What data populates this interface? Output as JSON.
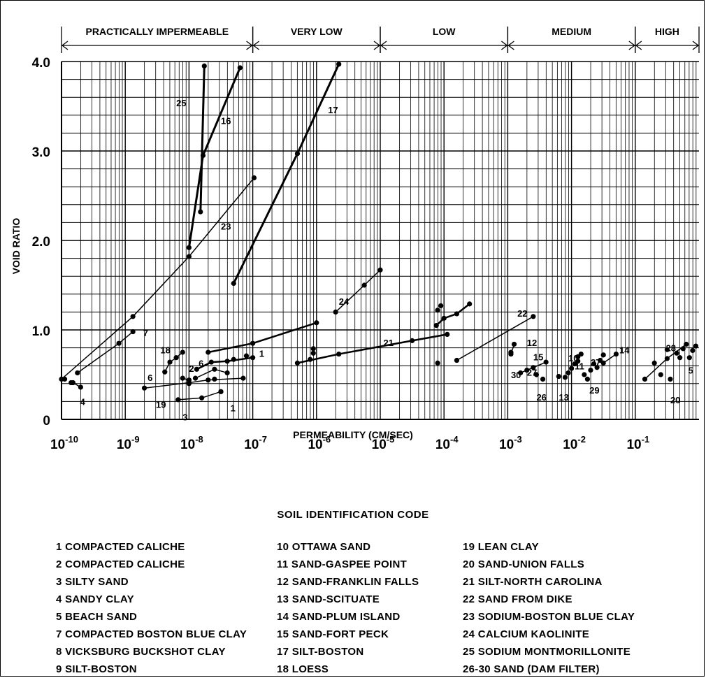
{
  "chart_data": {
    "type": "scatter",
    "xlabel": "PERMEABILITY (CM/SEC)",
    "ylabel": "VOID RATIO",
    "x_scale": "log",
    "xlim": [
      1e-10,
      1
    ],
    "ylim": [
      0,
      4.0
    ],
    "grid": true,
    "x_ticks": [
      {
        "value": -10,
        "label": "10",
        "exp": "-10"
      },
      {
        "value": -9,
        "label": "10",
        "exp": "-9"
      },
      {
        "value": -8,
        "label": "10",
        "exp": "-8"
      },
      {
        "value": -7,
        "label": "10",
        "exp": "-7"
      },
      {
        "value": -6,
        "label": "10",
        "exp": "-6"
      },
      {
        "value": -5,
        "label": "10",
        "exp": "-5"
      },
      {
        "value": -4,
        "label": "10",
        "exp": "-4"
      },
      {
        "value": -3,
        "label": "10",
        "exp": "-3"
      },
      {
        "value": -2,
        "label": "10",
        "exp": "-2"
      },
      {
        "value": -1,
        "label": "10",
        "exp": "-1"
      }
    ],
    "y_ticks": [
      {
        "value": 0,
        "label": "0"
      },
      {
        "value": 1.0,
        "label": "1.0"
      },
      {
        "value": 2.0,
        "label": "2.0"
      },
      {
        "value": 3.0,
        "label": "3.0"
      },
      {
        "value": 4.0,
        "label": "4.0"
      }
    ],
    "ranges": [
      {
        "label": "PRACTICALLY IMPERMEABLE",
        "from": -10,
        "to": -7
      },
      {
        "label": "VERY LOW",
        "from": -7,
        "to": -5
      },
      {
        "label": "LOW",
        "from": -5,
        "to": -3
      },
      {
        "label": "MEDIUM",
        "from": -3,
        "to": -1
      },
      {
        "label": "HIGH",
        "from": -1,
        "to": 0
      }
    ],
    "series": [
      {
        "name": "25",
        "width": 3,
        "label_at": [
          -8.2,
          3.5
        ],
        "points": [
          [
            -7.76,
            3.95
          ],
          [
            -7.82,
            2.32
          ]
        ]
      },
      {
        "name": "16",
        "width": 3,
        "label_at": [
          -7.5,
          3.3
        ],
        "points": [
          [
            -8.0,
            1.92
          ],
          [
            -7.78,
            2.95
          ],
          [
            -7.2,
            3.93
          ]
        ]
      },
      {
        "name": "17",
        "width": 3,
        "label_at": [
          -5.82,
          3.42
        ],
        "points": [
          [
            -7.3,
            1.52
          ],
          [
            -6.3,
            2.97
          ],
          [
            -5.65,
            3.97
          ]
        ]
      },
      {
        "name": "23",
        "width": 1.5,
        "label_at": [
          -7.5,
          2.12
        ],
        "points": [
          [
            -10.0,
            0.45
          ],
          [
            -8.88,
            1.15
          ],
          [
            -8.0,
            1.82
          ],
          [
            -6.98,
            2.7
          ]
        ]
      },
      {
        "name": "7",
        "width": 1.5,
        "label_at": [
          -8.72,
          0.93
        ],
        "points": [
          [
            -9.75,
            0.52
          ],
          [
            -9.1,
            0.85
          ],
          [
            -8.88,
            0.98
          ]
        ]
      },
      {
        "name": "4",
        "width": 1.5,
        "label_at": [
          -9.71,
          0.16
        ],
        "points": [
          [
            -9.82,
            0.41
          ],
          [
            -9.7,
            0.36
          ]
        ]
      },
      {
        "name": "18",
        "width": 1.5,
        "label_at": [
          -8.45,
          0.74
        ],
        "points": [
          [
            -8.38,
            0.53
          ],
          [
            -8.3,
            0.64
          ],
          [
            -8.2,
            0.69
          ],
          [
            -8.1,
            0.75
          ]
        ]
      },
      {
        "name": "6",
        "width": 1.5,
        "label_at": [
          -8.65,
          0.43
        ],
        "points": [
          [
            -8.1,
            0.46
          ],
          [
            -8.0,
            0.44
          ]
        ]
      },
      {
        "name": "2",
        "width": 1.5,
        "label_at": [
          -8.0,
          0.53
        ],
        "points": [
          [
            -7.9,
            0.46
          ],
          [
            -7.6,
            0.56
          ],
          [
            -7.4,
            0.52
          ]
        ]
      },
      {
        "name": "19",
        "width": 1.5,
        "label_at": [
          -8.52,
          0.13
        ],
        "points": [
          [
            -8.7,
            0.35
          ],
          [
            -8.0,
            0.41
          ],
          [
            -7.7,
            0.44
          ],
          [
            -7.15,
            0.46
          ]
        ]
      },
      {
        "name": "3",
        "width": 1.5,
        "label_at": [
          -8.1,
          -0.01
        ],
        "points": [
          [
            -8.17,
            0.22
          ],
          [
            -7.8,
            0.24
          ],
          [
            -7.5,
            0.31
          ]
        ]
      },
      {
        "name": "1",
        "width": 1.5,
        "label_at": [
          -7.35,
          0.09
        ],
        "points": [
          [
            -7.5,
            0.31
          ]
        ]
      },
      {
        "name": "6",
        "width": 2.5,
        "label_at": [
          -7.85,
          0.59
        ],
        "points": [
          [
            -7.88,
            0.56
          ],
          [
            -7.65,
            0.64
          ],
          [
            -7.4,
            0.65
          ],
          [
            -7.0,
            0.69
          ]
        ]
      },
      {
        "name": "1",
        "width": 2.5,
        "label_at": [
          -6.9,
          0.7
        ],
        "points": [
          [
            -7.7,
            0.75
          ],
          [
            -7.0,
            0.85
          ],
          [
            -6.0,
            1.08
          ]
        ]
      },
      {
        "name": "24",
        "width": 1.5,
        "label_at": [
          -5.65,
          1.28
        ],
        "points": [
          [
            -5.7,
            1.2
          ],
          [
            -5.25,
            1.5
          ],
          [
            -5.0,
            1.67
          ]
        ]
      },
      {
        "name": "21",
        "width": 2.5,
        "label_at": [
          -4.95,
          0.82
        ],
        "points": [
          [
            -6.3,
            0.63
          ],
          [
            -5.65,
            0.73
          ],
          [
            -4.5,
            0.88
          ],
          [
            -3.95,
            0.95
          ]
        ]
      },
      {
        "name": "",
        "width": 2.5,
        "label_at": [
          0,
          0
        ],
        "points": [
          [
            -4.12,
            1.05
          ],
          [
            -4.0,
            1.13
          ],
          [
            -3.8,
            1.18
          ],
          [
            -3.6,
            1.29
          ]
        ]
      },
      {
        "name": "22",
        "width": 1.5,
        "label_at": [
          -2.85,
          1.15
        ],
        "points": [
          [
            -3.8,
            0.66
          ],
          [
            -2.6,
            1.15
          ]
        ]
      },
      {
        "name": "12",
        "width": 1.5,
        "label_at": [
          -2.7,
          0.82
        ],
        "points": [
          [
            -2.95,
            0.73
          ],
          [
            -2.9,
            0.84
          ]
        ]
      },
      {
        "name": "15",
        "width": 1.5,
        "label_at": [
          -2.6,
          0.66
        ],
        "points": [
          [
            -2.8,
            0.52
          ],
          [
            -2.6,
            0.58
          ],
          [
            -2.4,
            0.64
          ]
        ]
      },
      {
        "name": "14",
        "width": 1.5,
        "label_at": [
          -1.25,
          0.74
        ],
        "points": [
          [
            -1.5,
            0.63
          ],
          [
            -1.3,
            0.73
          ]
        ]
      },
      {
        "name": "28",
        "width": 1.5,
        "label_at": [
          -0.52,
          0.76
        ],
        "points": [
          [
            -0.85,
            0.45
          ],
          [
            -0.5,
            0.68
          ],
          [
            -0.2,
            0.84
          ]
        ]
      }
    ],
    "scatter_points": [
      [
        -9.95,
        0.45
      ],
      [
        -9.85,
        0.41
      ],
      [
        -8.0,
        0.4
      ],
      [
        -7.6,
        0.45
      ],
      [
        -7.3,
        0.67
      ],
      [
        -7.1,
        0.71
      ],
      [
        -6.1,
        0.67
      ],
      [
        -6.05,
        0.74
      ],
      [
        -6.05,
        0.79
      ],
      [
        -4.1,
        0.63
      ],
      [
        -4.1,
        1.22
      ],
      [
        -4.05,
        1.27
      ],
      [
        -2.95,
        0.75
      ],
      [
        -2.7,
        0.55
      ],
      [
        -2.55,
        0.5
      ],
      [
        -2.45,
        0.45
      ],
      [
        -2.2,
        0.48
      ],
      [
        -2.1,
        0.47
      ],
      [
        -2.05,
        0.52
      ],
      [
        -2.0,
        0.57
      ],
      [
        -1.95,
        0.62
      ],
      [
        -1.9,
        0.65
      ],
      [
        -1.9,
        0.7
      ],
      [
        -1.85,
        0.73
      ],
      [
        -1.8,
        0.5
      ],
      [
        -1.75,
        0.45
      ],
      [
        -1.7,
        0.55
      ],
      [
        -1.65,
        0.62
      ],
      [
        -1.6,
        0.58
      ],
      [
        -1.55,
        0.66
      ],
      [
        -1.5,
        0.72
      ],
      [
        -0.7,
        0.63
      ],
      [
        -0.6,
        0.5
      ],
      [
        -0.5,
        0.78
      ],
      [
        -0.45,
        0.45
      ],
      [
        -0.35,
        0.74
      ],
      [
        -0.3,
        0.69
      ],
      [
        -0.25,
        0.79
      ],
      [
        -0.15,
        0.69
      ],
      [
        -0.1,
        0.77
      ],
      [
        -0.05,
        0.82
      ]
    ],
    "point_labels": [
      {
        "text": "30",
        "at": [
          -2.95,
          0.46
        ]
      },
      {
        "text": "27",
        "at": [
          -2.7,
          0.49
        ]
      },
      {
        "text": "26",
        "at": [
          -2.55,
          0.21
        ]
      },
      {
        "text": "13",
        "at": [
          -2.2,
          0.21
        ]
      },
      {
        "text": "10",
        "at": [
          -2.05,
          0.65
        ]
      },
      {
        "text": "11",
        "at": [
          -1.95,
          0.56
        ]
      },
      {
        "text": "27",
        "at": [
          -1.7,
          0.6
        ]
      },
      {
        "text": "29",
        "at": [
          -1.72,
          0.29
        ]
      },
      {
        "text": "20",
        "at": [
          -0.45,
          0.18
        ]
      },
      {
        "text": "5",
        "at": [
          -0.17,
          0.51
        ]
      }
    ]
  },
  "legend": {
    "title": "SOIL IDENTIFICATION CODE",
    "columns": [
      [
        "1 COMPACTED CALICHE",
        "2 COMPACTED CALICHE",
        "3 SILTY SAND",
        "4 SANDY CLAY",
        "5 BEACH SAND",
        "7 COMPACTED BOSTON BLUE CLAY",
        "8 VICKSBURG BUCKSHOT CLAY",
        "9 SILT-BOSTON"
      ],
      [
        "10 OTTAWA SAND",
        "11 SAND-GASPEE POINT",
        "12 SAND-FRANKLIN FALLS",
        "13 SAND-SCITUATE",
        "14 SAND-PLUM ISLAND",
        "15 SAND-FORT PECK",
        "17 SILT-BOSTON",
        "18 LOESS"
      ],
      [
        "19 LEAN CLAY",
        "20 SAND-UNION FALLS",
        "21 SILT-NORTH CAROLINA",
        "22 SAND FROM DIKE",
        "23 SODIUM-BOSTON BLUE CLAY",
        "24 CALCIUM KAOLINITE",
        "25 SODIUM MONTMORILLONITE",
        "26-30 SAND (DAM FILTER)"
      ]
    ]
  }
}
